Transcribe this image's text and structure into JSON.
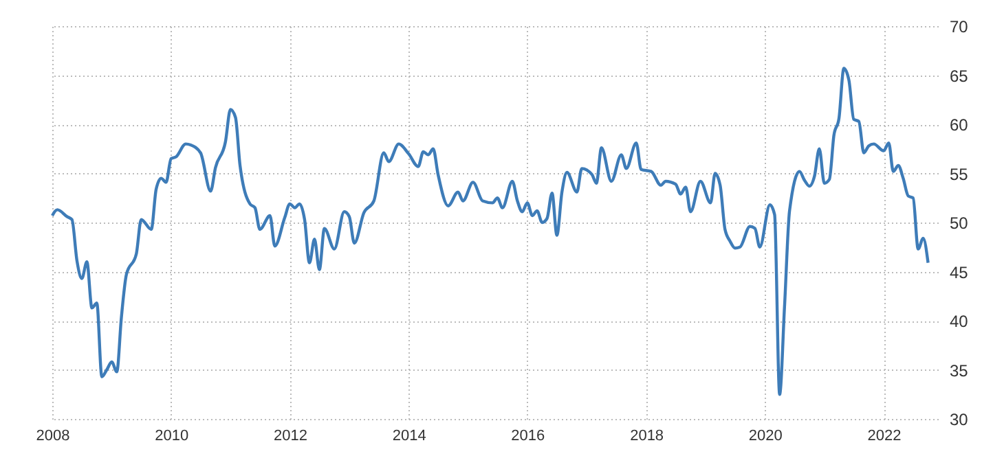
{
  "chart_data": {
    "type": "line",
    "x": [
      "2008-01",
      "2008-02",
      "2008-04",
      "2008-05",
      "2008-06",
      "2008-07",
      "2008-08",
      "2008-09",
      "2008-10",
      "2008-11",
      "2008-12",
      "2009-01",
      "2009-02",
      "2009-03",
      "2009-04",
      "2009-06",
      "2009-07",
      "2009-09",
      "2009-10",
      "2009-11",
      "2009-12",
      "2010-01",
      "2010-02",
      "2010-04",
      "2010-05",
      "2010-07",
      "2010-09",
      "2010-10",
      "2010-12",
      "2011-01",
      "2011-02",
      "2011-03",
      "2011-05",
      "2011-06",
      "2011-07",
      "2011-09",
      "2011-10",
      "2011-12",
      "2012-01",
      "2012-02",
      "2012-03",
      "2012-04",
      "2012-05",
      "2012-06",
      "2012-07",
      "2012-08",
      "2012-10",
      "2012-12",
      "2013-01",
      "2013-02",
      "2013-04",
      "2013-06",
      "2013-08",
      "2013-09",
      "2013-11",
      "2014-01",
      "2014-03",
      "2014-04",
      "2014-05",
      "2014-06",
      "2014-07",
      "2014-09",
      "2014-11",
      "2014-12",
      "2015-02",
      "2015-04",
      "2015-06",
      "2015-07",
      "2015-08",
      "2015-10",
      "2015-11",
      "2015-12",
      "2016-01",
      "2016-02",
      "2016-03",
      "2016-04",
      "2016-05",
      "2016-06",
      "2016-07",
      "2016-08",
      "2016-09",
      "2016-11",
      "2016-12",
      "2017-02",
      "2017-03",
      "2017-04",
      "2017-06",
      "2017-08",
      "2017-09",
      "2017-11",
      "2017-12",
      "2018-02",
      "2018-04",
      "2018-05",
      "2018-07",
      "2018-08",
      "2018-09",
      "2018-10",
      "2018-12",
      "2019-02",
      "2019-03",
      "2019-04",
      "2019-05",
      "2019-06",
      "2019-07",
      "2019-08",
      "2019-10",
      "2019-11",
      "2019-12",
      "2020-02",
      "2020-03",
      "2020-04",
      "2020-05",
      "2020-06",
      "2020-08",
      "2020-09",
      "2020-10",
      "2020-11",
      "2020-12",
      "2021-01",
      "2021-02",
      "2021-03",
      "2021-04",
      "2021-05",
      "2021-06",
      "2021-07",
      "2021-08",
      "2021-09",
      "2021-10",
      "2021-11",
      "2022-01",
      "2022-02",
      "2022-03",
      "2022-04",
      "2022-05",
      "2022-06",
      "2022-07",
      "2022-08",
      "2022-09",
      "2022-10"
    ],
    "series": [
      {
        "color": "#3e7cb8",
        "values": [
          50.7,
          51.3,
          50.6,
          50.3,
          46.1,
          44.3,
          46.0,
          41.3,
          41.8,
          34.3,
          35.0,
          35.8,
          34.8,
          40.3,
          44.7,
          46.8,
          50.3,
          49.3,
          53.4,
          54.5,
          54.1,
          56.5,
          56.7,
          58.0,
          57.9,
          57.1,
          53.2,
          55.6,
          58.2,
          61.5,
          60.7,
          55.8,
          51.9,
          51.5,
          49.3,
          50.7,
          47.6,
          50.5,
          51.9,
          51.5,
          51.9,
          50.3,
          45.9,
          48.3,
          45.2,
          49.4,
          47.3,
          51.1,
          50.6,
          47.9,
          51.0,
          52.2,
          57.1,
          56.2,
          58.0,
          57.0,
          55.7,
          57.2,
          56.9,
          57.5,
          54.9,
          51.7,
          53.1,
          52.2,
          54.1,
          52.2,
          52.0,
          52.5,
          51.5,
          54.2,
          52.2,
          51.1,
          52.0,
          50.7,
          51.2,
          50.0,
          50.4,
          53.0,
          48.7,
          53.1,
          55.1,
          53.1,
          55.5,
          54.9,
          54.0,
          57.6,
          54.2,
          56.9,
          55.5,
          58.1,
          55.4,
          55.2,
          53.8,
          54.2,
          53.9,
          52.9,
          53.6,
          51.1,
          54.2,
          52.0,
          55.0,
          53.8,
          49.3,
          48.1,
          47.4,
          47.5,
          49.6,
          49.4,
          47.5,
          51.8,
          50.8,
          32.5,
          41.4,
          51.2,
          55.2,
          54.3,
          53.7,
          54.7,
          57.5,
          54.0,
          54.4,
          58.9,
          60.6,
          65.7,
          64.5,
          60.5,
          60.3,
          57.1,
          57.8,
          58.0,
          57.3,
          58.1,
          55.2,
          55.8,
          54.5,
          52.7,
          52.5,
          47.3,
          48.4,
          45.9
        ]
      }
    ],
    "xlim": [
      "2008-01",
      "2022-12"
    ],
    "xticks": [
      "2008",
      "2010",
      "2012",
      "2014",
      "2016",
      "2018",
      "2020",
      "2022"
    ],
    "ylim": [
      30,
      70
    ],
    "yticks": [
      30,
      35,
      40,
      45,
      50,
      55,
      60,
      65,
      70
    ],
    "grid": true
  }
}
